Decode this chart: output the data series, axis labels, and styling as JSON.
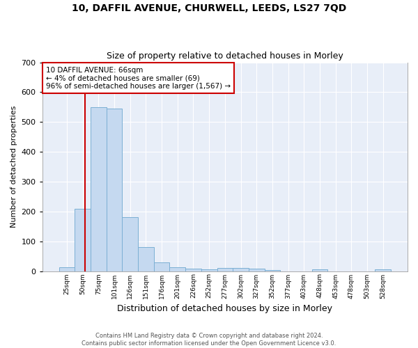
{
  "title1": "10, DAFFIL AVENUE, CHURWELL, LEEDS, LS27 7QD",
  "title2": "Size of property relative to detached houses in Morley",
  "xlabel": "Distribution of detached houses by size in Morley",
  "ylabel": "Number of detached properties",
  "bar_labels": [
    "25sqm",
    "50sqm",
    "75sqm",
    "101sqm",
    "126sqm",
    "151sqm",
    "176sqm",
    "201sqm",
    "226sqm",
    "252sqm",
    "277sqm",
    "302sqm",
    "327sqm",
    "352sqm",
    "377sqm",
    "403sqm",
    "428sqm",
    "453sqm",
    "478sqm",
    "503sqm",
    "528sqm"
  ],
  "bar_values": [
    12,
    210,
    550,
    545,
    180,
    80,
    30,
    14,
    8,
    5,
    10,
    10,
    8,
    4,
    0,
    0,
    5,
    0,
    0,
    0,
    7
  ],
  "bar_color": "#c5d9f0",
  "bar_edge_color": "#7bafd4",
  "background_color": "#e8eef8",
  "grid_color": "#ffffff",
  "red_line_color": "#cc0000",
  "annotation_text": "10 DAFFIL AVENUE: 66sqm\n← 4% of detached houses are smaller (69)\n96% of semi-detached houses are larger (1,567) →",
  "annotation_box_color": "#ffffff",
  "annotation_box_edge": "#cc0000",
  "footer_text": "Contains HM Land Registry data © Crown copyright and database right 2024.\nContains public sector information licensed under the Open Government Licence v3.0.",
  "ylim": [
    0,
    700
  ],
  "yticks": [
    0,
    100,
    200,
    300,
    400,
    500,
    600,
    700
  ]
}
